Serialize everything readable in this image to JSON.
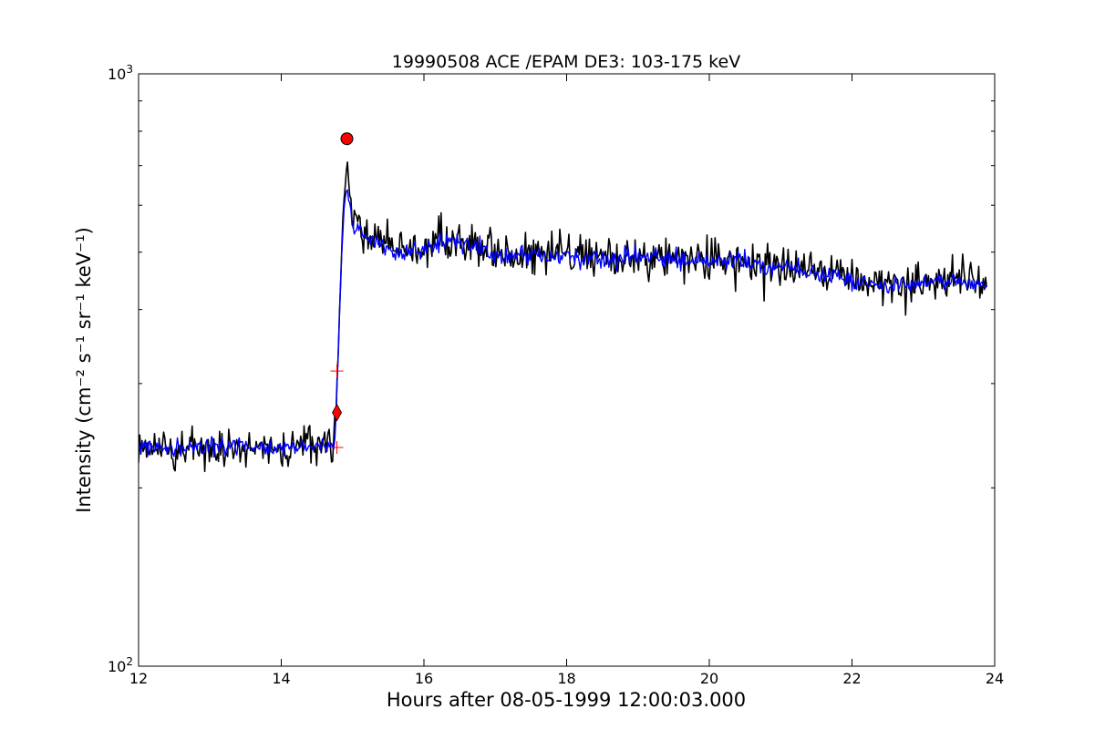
{
  "chart_data": {
    "type": "line",
    "title": "19990508 ACE /EPAM DE3: 103-175 keV",
    "xlabel": "Hours after 08-05-1999 12:00:03.000",
    "ylabel": "Intensity (cm⁻² s⁻¹ sr⁻¹ keV⁻¹)",
    "xlim": [
      12,
      24
    ],
    "ylim": [
      100,
      1000
    ],
    "yscale": "log",
    "grid": false,
    "x_ticks": [
      "12",
      "14",
      "16",
      "18",
      "20",
      "22",
      "24"
    ],
    "y_ticks": [
      {
        "base": "10",
        "exp": "2",
        "value": 100
      },
      {
        "base": "10",
        "exp": "3",
        "value": 1000
      }
    ],
    "colors": {
      "raw": "#000000",
      "smoothed": "#0000ff",
      "peak": "#ff0000",
      "onset": "#ff0000"
    },
    "series": [
      {
        "role": "raw",
        "profile": [
          [
            12.0,
            234
          ],
          [
            12.5,
            234
          ],
          [
            13.0,
            234
          ],
          [
            13.5,
            234
          ],
          [
            14.0,
            232
          ],
          [
            14.5,
            236
          ],
          [
            14.75,
            236
          ],
          [
            14.77,
            270
          ],
          [
            14.8,
            345
          ],
          [
            14.84,
            480
          ],
          [
            14.88,
            620
          ],
          [
            14.92,
            700
          ],
          [
            15.0,
            570
          ],
          [
            15.3,
            520
          ],
          [
            15.6,
            505
          ],
          [
            16.0,
            510
          ],
          [
            16.3,
            530
          ],
          [
            16.6,
            515
          ],
          [
            17.0,
            500
          ],
          [
            17.5,
            495
          ],
          [
            18.0,
            495
          ],
          [
            18.5,
            490
          ],
          [
            19.0,
            495
          ],
          [
            19.5,
            490
          ],
          [
            20.0,
            485
          ],
          [
            20.5,
            480
          ],
          [
            21.0,
            475
          ],
          [
            21.5,
            460
          ],
          [
            22.0,
            450
          ],
          [
            22.5,
            440
          ],
          [
            23.0,
            445
          ],
          [
            23.5,
            450
          ],
          [
            23.9,
            445
          ]
        ],
        "noise": 0.068,
        "step": 0.016
      },
      {
        "role": "smoothed",
        "profile": [
          [
            12.0,
            234
          ],
          [
            12.5,
            234
          ],
          [
            13.0,
            235
          ],
          [
            13.5,
            234
          ],
          [
            14.0,
            232
          ],
          [
            14.5,
            236
          ],
          [
            14.75,
            236
          ],
          [
            14.77,
            268
          ],
          [
            14.8,
            340
          ],
          [
            14.84,
            470
          ],
          [
            14.88,
            590
          ],
          [
            14.92,
            640
          ],
          [
            15.0,
            560
          ],
          [
            15.3,
            515
          ],
          [
            15.6,
            500
          ],
          [
            16.0,
            508
          ],
          [
            16.3,
            525
          ],
          [
            16.6,
            512
          ],
          [
            17.0,
            498
          ],
          [
            17.5,
            493
          ],
          [
            18.0,
            493
          ],
          [
            18.5,
            488
          ],
          [
            19.0,
            493
          ],
          [
            19.5,
            488
          ],
          [
            20.0,
            483
          ],
          [
            20.5,
            478
          ],
          [
            21.0,
            473
          ],
          [
            21.5,
            458
          ],
          [
            22.0,
            448
          ],
          [
            22.5,
            438
          ],
          [
            23.0,
            443
          ],
          [
            23.5,
            448
          ],
          [
            23.9,
            443
          ]
        ],
        "noise": 0.03,
        "step": 0.016
      }
    ],
    "markers": {
      "peak": {
        "x": 14.92,
        "y": 777,
        "shape": "circle"
      },
      "onset": {
        "x": 14.78,
        "y": 268,
        "shape": "diamond"
      },
      "onset_bounds": [
        {
          "x": 14.78,
          "y": 315
        },
        {
          "x": 14.78,
          "y": 234
        }
      ]
    }
  }
}
